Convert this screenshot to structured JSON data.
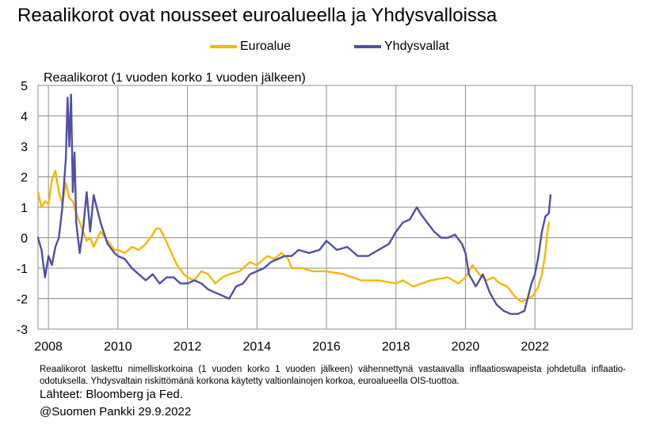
{
  "chart_data": {
    "type": "line",
    "title": "Reaalikorot ovat nousseet euroalueella ja Yhdysvalloissa",
    "ylabel": "Reaalikorot (1 vuoden korko 1 vuoden jälkeen)",
    "xlabel": "",
    "ylim": [
      -3,
      5
    ],
    "xlim": [
      2007.7,
      2024.8
    ],
    "yticks": [
      "5",
      "4",
      "3",
      "2",
      "1",
      "0",
      "-1",
      "-2",
      "-3"
    ],
    "xticks": [
      "2008",
      "2010",
      "2012",
      "2014",
      "2016",
      "2018",
      "2020",
      "2022"
    ],
    "grid": true,
    "legend_position": "top",
    "series": [
      {
        "name": "Euroalue",
        "color": "#F5B800",
        "x": [
          2007.7,
          2007.8,
          2007.9,
          2008.0,
          2008.1,
          2008.2,
          2008.3,
          2008.4,
          2008.5,
          2008.6,
          2008.7,
          2008.8,
          2008.9,
          2009.0,
          2009.1,
          2009.2,
          2009.3,
          2009.5,
          2009.7,
          2009.9,
          2010.0,
          2010.2,
          2010.4,
          2010.6,
          2010.8,
          2011.0,
          2011.1,
          2011.2,
          2011.3,
          2011.5,
          2011.7,
          2011.9,
          2012.0,
          2012.2,
          2012.4,
          2012.6,
          2012.8,
          2013.0,
          2013.2,
          2013.5,
          2013.8,
          2014.0,
          2014.3,
          2014.5,
          2014.7,
          2014.9,
          2015.0,
          2015.3,
          2015.6,
          2016.0,
          2016.5,
          2017.0,
          2017.5,
          2018.0,
          2018.2,
          2018.5,
          2019.0,
          2019.5,
          2019.8,
          2020.0,
          2020.2,
          2020.4,
          2020.6,
          2020.8,
          2021.0,
          2021.2,
          2021.4,
          2021.6,
          2021.8,
          2021.95,
          2022.1,
          2022.2,
          2022.3,
          2022.35,
          2022.4
        ],
        "values": [
          1.5,
          1.0,
          1.2,
          1.1,
          1.9,
          2.2,
          1.5,
          1.1,
          1.8,
          1.3,
          1.2,
          0.8,
          0.5,
          0.2,
          -0.1,
          0.0,
          -0.3,
          0.2,
          -0.1,
          -0.4,
          -0.4,
          -0.5,
          -0.3,
          -0.4,
          -0.2,
          0.1,
          0.3,
          0.3,
          0.1,
          -0.4,
          -0.9,
          -1.2,
          -1.3,
          -1.4,
          -1.1,
          -1.2,
          -1.5,
          -1.3,
          -1.2,
          -1.1,
          -0.8,
          -0.9,
          -0.6,
          -0.7,
          -0.5,
          -0.7,
          -1.0,
          -1.0,
          -1.1,
          -1.1,
          -1.2,
          -1.4,
          -1.4,
          -1.5,
          -1.4,
          -1.6,
          -1.4,
          -1.3,
          -1.5,
          -1.3,
          -0.9,
          -1.2,
          -1.4,
          -1.3,
          -1.5,
          -1.6,
          -1.9,
          -2.1,
          -2.0,
          -1.9,
          -1.6,
          -1.2,
          -0.5,
          0.1,
          0.5
        ]
      },
      {
        "name": "Yhdysvallat",
        "color": "#4F4FA8",
        "x": [
          2007.7,
          2007.8,
          2007.9,
          2008.0,
          2008.1,
          2008.2,
          2008.3,
          2008.4,
          2008.5,
          2008.55,
          2008.6,
          2008.65,
          2008.7,
          2008.75,
          2008.8,
          2008.9,
          2009.0,
          2009.1,
          2009.2,
          2009.3,
          2009.5,
          2009.7,
          2009.9,
          2010.0,
          2010.2,
          2010.4,
          2010.6,
          2010.8,
          2011.0,
          2011.2,
          2011.4,
          2011.6,
          2011.8,
          2012.0,
          2012.2,
          2012.4,
          2012.6,
          2012.8,
          2013.0,
          2013.2,
          2013.4,
          2013.6,
          2013.8,
          2014.0,
          2014.2,
          2014.4,
          2014.6,
          2014.8,
          2015.0,
          2015.2,
          2015.5,
          2015.8,
          2016.0,
          2016.3,
          2016.6,
          2016.9,
          2017.2,
          2017.5,
          2017.8,
          2018.0,
          2018.2,
          2018.4,
          2018.6,
          2018.7,
          2018.9,
          2019.1,
          2019.3,
          2019.5,
          2019.7,
          2019.9,
          2020.0,
          2020.1,
          2020.3,
          2020.5,
          2020.7,
          2020.9,
          2021.1,
          2021.3,
          2021.5,
          2021.7,
          2021.9,
          2022.0,
          2022.1,
          2022.2,
          2022.3,
          2022.4,
          2022.45
        ],
        "values": [
          0.0,
          -0.4,
          -1.3,
          -0.6,
          -0.9,
          -0.3,
          0.0,
          1.0,
          2.6,
          4.6,
          3.0,
          4.7,
          1.5,
          2.8,
          0.5,
          -0.5,
          0.3,
          1.5,
          0.2,
          1.4,
          0.5,
          -0.2,
          -0.5,
          -0.6,
          -0.7,
          -1.0,
          -1.2,
          -1.4,
          -1.2,
          -1.5,
          -1.3,
          -1.3,
          -1.5,
          -1.5,
          -1.4,
          -1.5,
          -1.7,
          -1.8,
          -1.9,
          -2.0,
          -1.6,
          -1.5,
          -1.2,
          -1.1,
          -1.0,
          -0.8,
          -0.7,
          -0.6,
          -0.6,
          -0.4,
          -0.5,
          -0.4,
          -0.1,
          -0.4,
          -0.3,
          -0.6,
          -0.6,
          -0.4,
          -0.2,
          0.2,
          0.5,
          0.6,
          1.0,
          0.8,
          0.5,
          0.2,
          0.0,
          0.0,
          0.1,
          -0.2,
          -0.5,
          -1.2,
          -1.6,
          -1.2,
          -1.8,
          -2.2,
          -2.4,
          -2.5,
          -2.5,
          -2.4,
          -1.5,
          -1.2,
          -0.6,
          0.2,
          0.7,
          0.8,
          1.4
        ]
      }
    ]
  },
  "footnote": {
    "text": "Reaalikorot laskettu nimelliskorkoina (1 vuoden korko 1 vuoden jälkeen) vähennettynä vastaavalla inflaatioswapeista johdetulla inflaatio-odotuksella. Yhdysvaltain riskittömänä korkona käytetty valtionlainojen korkoa, euroalueella OIS-tuottoa.",
    "sources": "Lähteet: Bloomberg ja Fed.",
    "credit": "@Suomen Pankki 29.9.2022"
  }
}
